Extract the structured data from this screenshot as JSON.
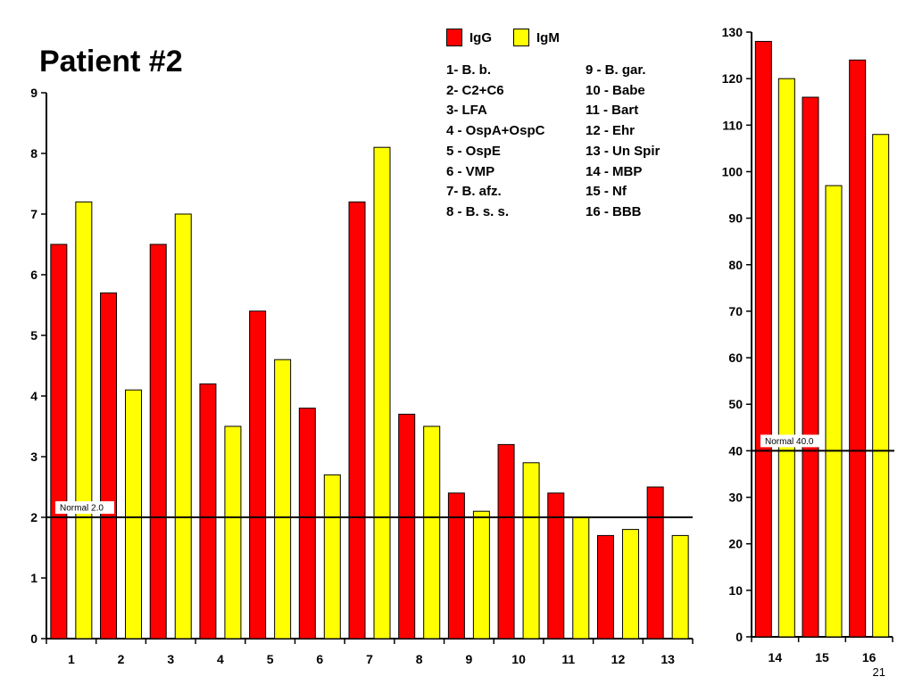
{
  "title": "Patient #2",
  "slide_number": "21",
  "colors": {
    "igg": "#FF0000",
    "igm": "#FFFF00",
    "axis": "#000000"
  },
  "legend": {
    "igg_label": "IgG",
    "igm_label": "IgM"
  },
  "key_left": [
    "1- B. b.",
    "2- C2+C6",
    "3- LFA",
    "4 - OspA+OspC",
    "5 - OspE",
    "6 - VMP",
    "7- B. afz.",
    "8 - B. s. s."
  ],
  "key_right": [
    "9 - B. gar.",
    "10 - Babe",
    "11 - Bart",
    "12 - Ehr",
    "13 - Un Spir",
    "14 - MBP",
    "15 - Nf",
    "16 - BBB"
  ],
  "chart_data": [
    {
      "type": "bar",
      "categories": [
        "1",
        "2",
        "3",
        "4",
        "5",
        "6",
        "7",
        "8",
        "9",
        "10",
        "11",
        "12",
        "13"
      ],
      "series": [
        {
          "name": "IgG",
          "values": [
            6.5,
            5.7,
            6.5,
            4.2,
            5.4,
            3.8,
            7.2,
            3.7,
            2.4,
            3.2,
            2.4,
            1.7,
            2.5
          ]
        },
        {
          "name": "IgM",
          "values": [
            7.2,
            4.1,
            7.0,
            3.5,
            4.6,
            2.7,
            8.1,
            3.5,
            2.1,
            2.9,
            2.0,
            1.8,
            1.7
          ]
        }
      ],
      "ylim": [
        0,
        9
      ],
      "yticks": [
        0,
        1,
        2,
        3,
        4,
        5,
        6,
        7,
        8,
        9
      ],
      "reference_line": {
        "value": 2.0,
        "label": "Normal 2.0"
      },
      "grid": false
    },
    {
      "type": "bar",
      "categories": [
        "14",
        "15",
        "16"
      ],
      "series": [
        {
          "name": "IgG",
          "values": [
            128,
            116,
            124
          ]
        },
        {
          "name": "IgM",
          "values": [
            120,
            97,
            108
          ]
        }
      ],
      "ylim": [
        0,
        130
      ],
      "yticks": [
        0,
        10,
        20,
        30,
        40,
        50,
        60,
        70,
        80,
        90,
        100,
        110,
        120,
        130
      ],
      "reference_line": {
        "value": 40.0,
        "label": "Normal 40.0"
      },
      "grid": false
    }
  ]
}
